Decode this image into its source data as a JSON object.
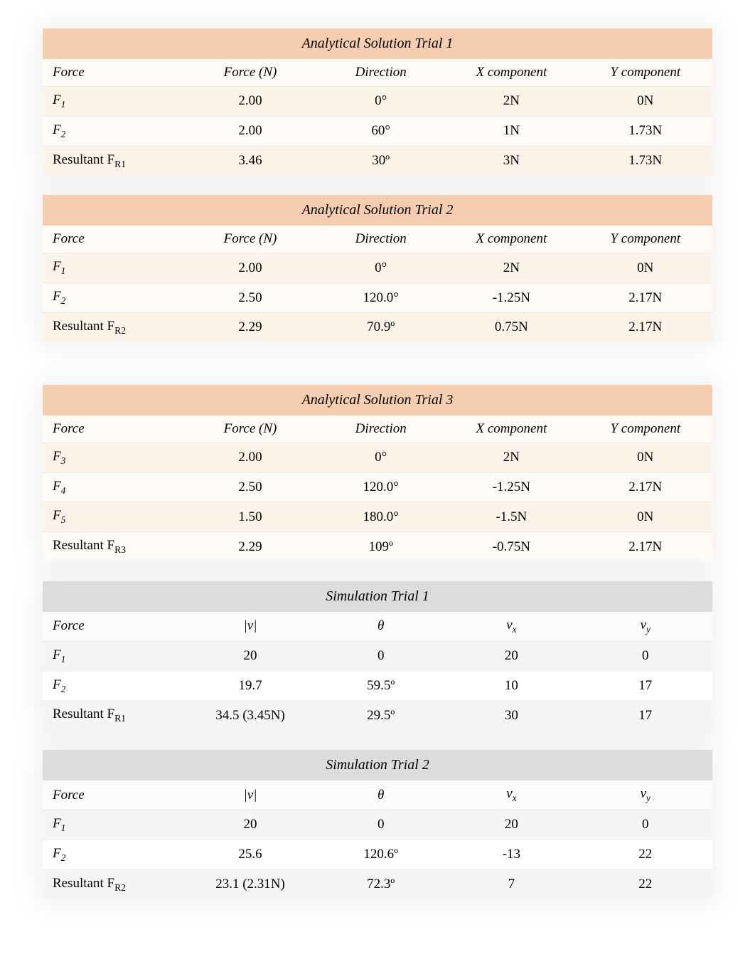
{
  "colors": {
    "title_peach": "#f5ceb1",
    "title_grey": "#dcdcdc",
    "row_peach_a": "#fefaf5",
    "row_peach_b": "#fdf4e9",
    "row_grey_a": "#ffffff",
    "row_grey_b": "#f5f5f5"
  },
  "tables": [
    {
      "style": "peach",
      "title": "Analytical Solution Trial 1",
      "headers": [
        "Force",
        "Force (N)",
        "Direction",
        "X component",
        "Y component"
      ],
      "rows": [
        {
          "label_html": "<span class='force-label'>F<span class='sub'>1</span></span>",
          "cells": [
            "2.00",
            "0°",
            "2N",
            "0N"
          ]
        },
        {
          "label_html": "<span class='force-label'>F<span class='sub'>2</span></span>",
          "cells": [
            "2.00",
            "60°",
            "1N",
            "1.73N"
          ]
        },
        {
          "label_html": "<span class='resultant'>Resultant F<span class='rsub'>R1</span></span>",
          "cells": [
            "3.46",
            "30º",
            "3N",
            "1.73N"
          ]
        }
      ]
    },
    {
      "style": "peach",
      "extra_gap": true,
      "title": "Analytical Solution Trial 2",
      "headers": [
        "Force",
        "Force (N)",
        "Direction",
        "X component",
        "Y component"
      ],
      "rows": [
        {
          "label_html": "<span class='force-label'>F<span class='sub'>1</span></span>",
          "cells": [
            "2.00",
            "0°",
            "2N",
            "0N"
          ]
        },
        {
          "label_html": "<span class='force-label'>F<span class='sub'>2</span></span>",
          "cells": [
            "2.50",
            "120.0°",
            "-1.25N",
            "2.17N"
          ]
        },
        {
          "label_html": "<span class='resultant'>Resultant F<span class='rsub'>R2</span></span>",
          "cells": [
            "2.29",
            "70.9º",
            "0.75N",
            "2.17N"
          ]
        }
      ]
    },
    {
      "style": "peach",
      "title": "Analytical Solution Trial 3",
      "headers": [
        "Force",
        "Force (N)",
        "Direction",
        "X component",
        "Y component"
      ],
      "rows": [
        {
          "label_html": "<span class='force-label'>F<span class='sub'>3</span></span>",
          "cells": [
            "2.00",
            "0°",
            "2N",
            "0N"
          ]
        },
        {
          "label_html": "<span class='force-label'>F<span class='sub'>4</span></span>",
          "cells": [
            "2.50",
            "120.0°",
            "-1.25N",
            "2.17N"
          ]
        },
        {
          "label_html": "<span class='force-label'>F<span class='sub'>5</span></span>",
          "cells": [
            "1.50",
            "180.0°",
            "-1.5N",
            "0N"
          ]
        },
        {
          "label_html": "<span class='resultant'>Resultant F<span class='rsub'>R3</span></span>",
          "cells": [
            "2.29",
            "109º",
            "-0.75N",
            "2.17N"
          ]
        }
      ]
    },
    {
      "style": "grey",
      "title": "Simulation Trial 1",
      "headers_html": [
        "Force",
        "<span style='font-family:Georgia'>|<i>v</i>|</span>",
        "<i>θ</i>",
        "<i>v<span class='sub'>x</span></i>",
        "<i>v<span class='sub'>y</span></i>"
      ],
      "rows": [
        {
          "label_html": "<span class='force-label'>F<span class='sub'>1</span></span>",
          "cells": [
            "20",
            "0",
            "20",
            "0"
          ]
        },
        {
          "label_html": "<span class='force-label'>F<span class='sub'>2</span></span>",
          "cells": [
            "19.7",
            "59.5º",
            "10",
            "17"
          ]
        },
        {
          "label_html": "<span class='resultant'>Resultant F<span class='rsub'>R1</span></span>",
          "cells": [
            "34.5 (3.45N)",
            "29.5º",
            "30",
            "17"
          ]
        }
      ]
    },
    {
      "style": "grey",
      "title": "Simulation Trial 2",
      "headers_html": [
        "Force",
        "<span style='font-family:Georgia'>|<i>v</i>|</span>",
        "<i>θ</i>",
        "<i>v<span class='sub'>x</span></i>",
        "<i>v<span class='sub'>y</span></i>"
      ],
      "rows": [
        {
          "label_html": "<span class='force-label'>F<span class='sub'>1</span></span>",
          "cells": [
            "20",
            "0",
            "20",
            "0"
          ]
        },
        {
          "label_html": "<span class='force-label'>F<span class='sub'>2</span></span>",
          "cells": [
            "25.6",
            "120.6º",
            "-13",
            "22"
          ]
        },
        {
          "label_html": "<span class='resultant'>Resultant F<span class='rsub'>R2</span></span>",
          "cells": [
            "23.1 (2.31N)",
            "72.3º",
            "7",
            "22"
          ]
        }
      ]
    }
  ]
}
